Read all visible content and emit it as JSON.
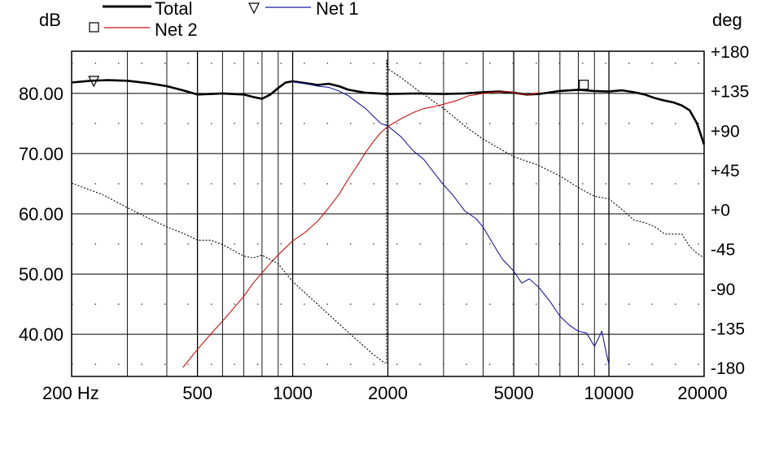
{
  "chart_data": {
    "type": "line",
    "x_scale": "log",
    "xlim": [
      200,
      20000
    ],
    "ylim_left": [
      33,
      87
    ],
    "ylim_right": [
      -190,
      180
    ],
    "left_axis_label": "dB",
    "right_axis_label": "deg",
    "x_ticks": [
      {
        "value": 200,
        "label": "200 Hz"
      },
      {
        "value": 500,
        "label": "500"
      },
      {
        "value": 1000,
        "label": "1000"
      },
      {
        "value": 2000,
        "label": "2000"
      },
      {
        "value": 5000,
        "label": "5000"
      },
      {
        "value": 10000,
        "label": "10000"
      },
      {
        "value": 20000,
        "label": "20000"
      }
    ],
    "y_ticks_left": [
      {
        "value": 80,
        "label": "80.00"
      },
      {
        "value": 70,
        "label": "70.00"
      },
      {
        "value": 60,
        "label": "60.00"
      },
      {
        "value": 50,
        "label": "50.00"
      },
      {
        "value": 40,
        "label": "40.00"
      }
    ],
    "y_ticks_right": [
      {
        "value": 180,
        "label": "+180"
      },
      {
        "value": 135,
        "label": "+135"
      },
      {
        "value": 90,
        "label": "+90"
      },
      {
        "value": 45,
        "label": "+45"
      },
      {
        "value": 0,
        "label": "+0"
      },
      {
        "value": -45,
        "label": "-45"
      },
      {
        "value": -90,
        "label": "-90"
      },
      {
        "value": -135,
        "label": "-135"
      },
      {
        "value": -180,
        "label": "-180"
      }
    ],
    "legend": [
      {
        "name": "Total",
        "color": "#000000",
        "marker": "none"
      },
      {
        "name": "Net 1",
        "color": "#1a1aa8",
        "marker": "triangle-down"
      },
      {
        "name": "Net 2",
        "color": "#d01010",
        "marker": "square"
      }
    ],
    "series": [
      {
        "name": "Total",
        "color": "#000000",
        "axis": "left",
        "x": [
          200,
          230,
          260,
          300,
          350,
          400,
          450,
          500,
          550,
          600,
          700,
          750,
          800,
          850,
          900,
          950,
          1000,
          1100,
          1200,
          1300,
          1400,
          1500,
          1700,
          2000,
          2500,
          3000,
          3500,
          4000,
          4500,
          5000,
          5500,
          6000,
          7000,
          8000,
          9000,
          10000,
          11000,
          12000,
          13000,
          14000,
          15000,
          16000,
          17000,
          18000,
          19000,
          20000
        ],
        "y": [
          81.8,
          82.1,
          82.2,
          82.1,
          81.7,
          81.2,
          80.5,
          79.8,
          79.9,
          80.0,
          79.8,
          79.4,
          79.1,
          79.8,
          80.9,
          81.8,
          82.0,
          81.7,
          81.4,
          81.6,
          81.2,
          80.6,
          80.1,
          79.9,
          80.0,
          79.9,
          80.0,
          80.2,
          80.3,
          80.1,
          79.8,
          79.9,
          80.4,
          80.6,
          80.4,
          80.3,
          80.5,
          80.2,
          79.8,
          79.2,
          78.8,
          78.5,
          78.0,
          77.2,
          75.0,
          71.5
        ]
      },
      {
        "name": "Net 1",
        "color": "#1a1aa8",
        "axis": "left",
        "x": [
          1000,
          1100,
          1200,
          1300,
          1400,
          1500,
          1600,
          1700,
          1800,
          1900,
          2000,
          2200,
          2400,
          2600,
          2800,
          3000,
          3200,
          3500,
          3800,
          4000,
          4300,
          4600,
          5000,
          5300,
          5600,
          6000,
          6500,
          7000,
          7500,
          8000,
          8500,
          9000,
          9500,
          9800,
          10000
        ],
        "y": [
          81.9,
          81.6,
          81.2,
          81.0,
          80.4,
          79.6,
          78.5,
          77.5,
          76.2,
          75.0,
          74.6,
          72.8,
          70.5,
          69.0,
          66.8,
          64.8,
          63.2,
          60.5,
          59.2,
          57.8,
          55.0,
          52.5,
          50.5,
          48.5,
          49.2,
          47.8,
          45.5,
          43.0,
          41.5,
          40.5,
          40.2,
          38.0,
          40.5,
          37.0,
          35.0
        ]
      },
      {
        "name": "Net 2",
        "color": "#d01010",
        "axis": "left",
        "x": [
          450,
          500,
          550,
          600,
          650,
          700,
          750,
          800,
          850,
          900,
          1000,
          1100,
          1200,
          1300,
          1400,
          1500,
          1600,
          1700,
          1800,
          1900,
          2000,
          2200,
          2400,
          2600,
          2800,
          3000,
          3300,
          3600,
          4000,
          4400,
          4800,
          5200,
          5600,
          6000
        ],
        "y": [
          34.5,
          37.5,
          40.0,
          42.2,
          44.3,
          46.3,
          48.5,
          50.2,
          51.8,
          53.2,
          55.5,
          57.0,
          58.8,
          61.0,
          63.2,
          65.8,
          68.0,
          70.2,
          72.0,
          73.5,
          74.5,
          75.8,
          76.8,
          77.5,
          77.8,
          78.2,
          78.8,
          79.6,
          80.0,
          80.2,
          80.3,
          79.9,
          79.8,
          80.1
        ]
      },
      {
        "name": "phase",
        "color": "#000000",
        "axis": "right",
        "style": "dashed",
        "x": [
          200,
          250,
          300,
          350,
          400,
          450,
          500,
          550,
          600,
          700,
          750,
          800,
          900,
          1000,
          1200,
          1500,
          1800,
          1960,
          1980,
          2000,
          2200,
          2500,
          3000,
          3500,
          4000,
          5000,
          6000,
          7000,
          8000,
          9000,
          10000,
          11000,
          12000,
          13000,
          14000,
          15000,
          16000,
          17000,
          18000,
          19000,
          20000
        ],
        "y": [
          30,
          17,
          2,
          -10,
          -20,
          -27,
          -35,
          -35,
          -40,
          -53,
          -55,
          -52,
          -62,
          -82,
          -108,
          -140,
          -165,
          -175,
          170,
          160,
          150,
          135,
          115,
          95,
          80,
          60,
          50,
          38,
          25,
          15,
          12,
          0,
          -12,
          -15,
          -20,
          -28,
          -28,
          -28,
          -42,
          -50,
          -55
        ]
      }
    ]
  }
}
